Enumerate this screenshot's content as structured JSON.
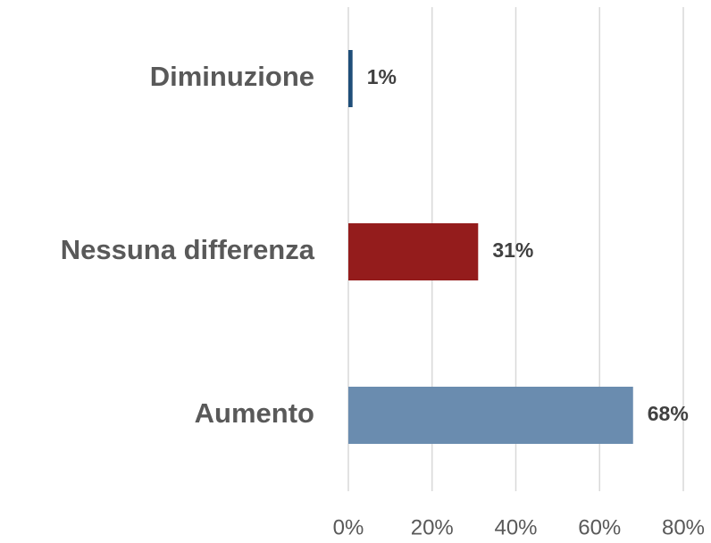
{
  "chart_data": {
    "type": "barh",
    "categories": [
      "Diminuzione",
      "Nessuna differenza",
      "Aumento"
    ],
    "values": [
      1,
      31,
      68
    ],
    "value_labels": [
      "1%",
      "31%",
      "68%"
    ],
    "colors": [
      "#1f4e79",
      "#941c1c",
      "#6a8caf"
    ],
    "xlim": [
      0,
      80
    ],
    "xticks": [
      {
        "value": 0,
        "label": "0%"
      },
      {
        "value": 20,
        "label": "20%"
      },
      {
        "value": 40,
        "label": "40%"
      },
      {
        "value": 60,
        "label": "60%"
      },
      {
        "value": 80,
        "label": "80%"
      }
    ],
    "grid": true
  }
}
